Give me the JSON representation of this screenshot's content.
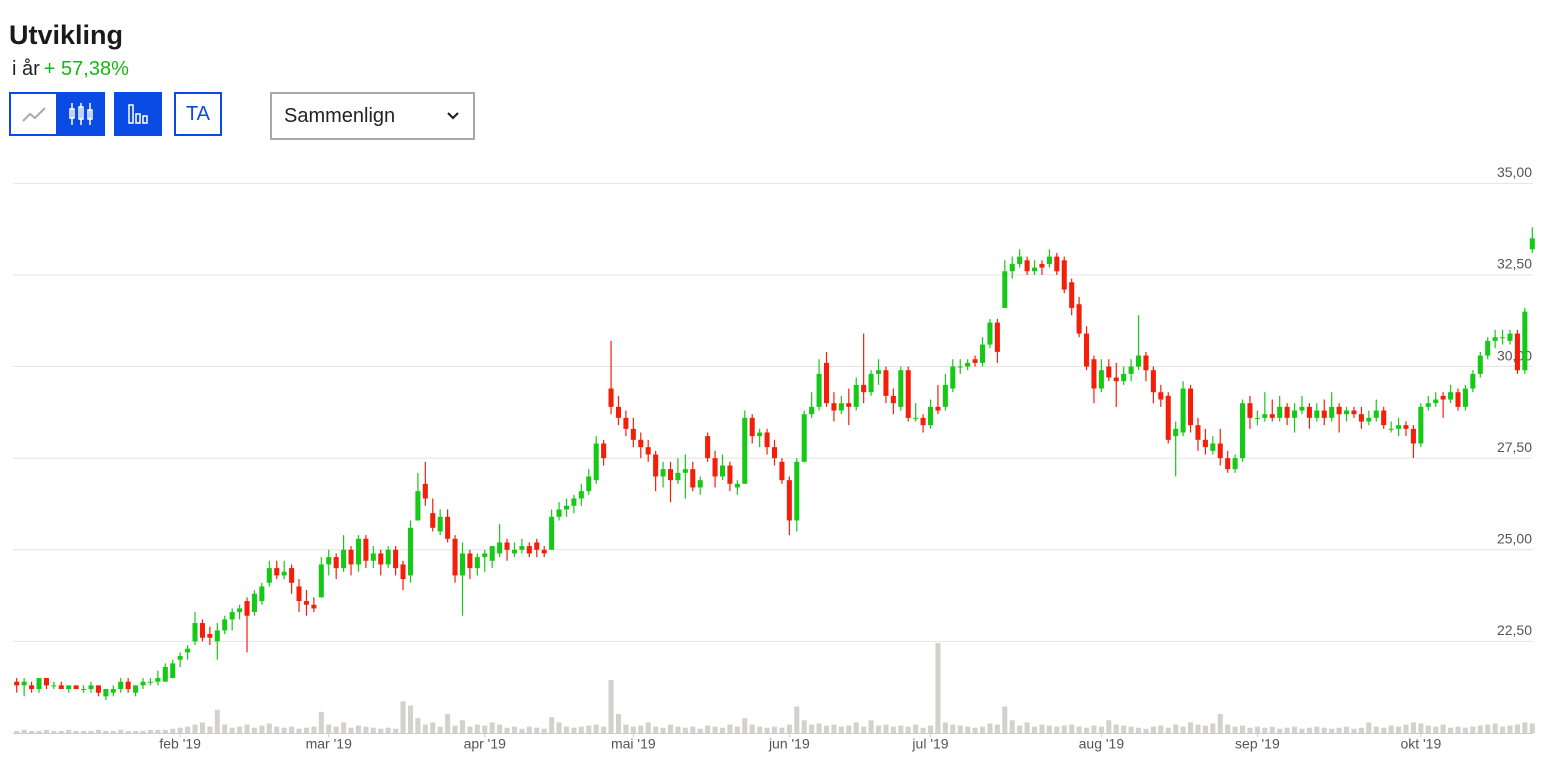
{
  "header": {
    "title": "Utvikling",
    "period": "i år",
    "change": "+ 57,38%"
  },
  "controls": {
    "ta": "TA",
    "compare": "Sammenlign"
  },
  "chart_data": {
    "type": "candlestick",
    "up_color": "#16c916",
    "down_color": "#f51e0a",
    "volume_color": "#d4d1cd",
    "grid": true,
    "ylim": [
      20,
      35.5
    ],
    "yticks": [
      {
        "value": 22.5,
        "label": "22,50"
      },
      {
        "value": 25,
        "label": "25,00"
      },
      {
        "value": 27.5,
        "label": "27,50"
      },
      {
        "value": 30,
        "label": "30,00"
      },
      {
        "value": 32.5,
        "label": "32,50"
      },
      {
        "value": 35,
        "label": "35,00"
      }
    ],
    "xlim": [
      -0.5,
      204.5
    ],
    "xticks": [
      {
        "value": 22,
        "label": "feb '19"
      },
      {
        "value": 42,
        "label": "mar '19"
      },
      {
        "value": 63,
        "label": "apr '19"
      },
      {
        "value": 83,
        "label": "mai '19"
      },
      {
        "value": 104,
        "label": "jun '19"
      },
      {
        "value": 123,
        "label": "jul '19"
      },
      {
        "value": 146,
        "label": "aug '19"
      },
      {
        "value": 167,
        "label": "sep '19"
      },
      {
        "value": 189,
        "label": "okt '19"
      }
    ],
    "candles": [
      [
        21.4,
        21.5,
        21.1,
        21.3
      ],
      [
        21.3,
        21.5,
        21.0,
        21.4
      ],
      [
        21.3,
        21.4,
        21.1,
        21.2
      ],
      [
        21.2,
        21.5,
        21.1,
        21.5
      ],
      [
        21.5,
        21.5,
        21.2,
        21.3
      ],
      [
        21.3,
        21.4,
        21.2,
        21.3
      ],
      [
        21.3,
        21.4,
        21.2,
        21.2
      ],
      [
        21.2,
        21.3,
        21.1,
        21.3
      ],
      [
        21.3,
        21.3,
        21.2,
        21.2
      ],
      [
        21.2,
        21.3,
        21.1,
        21.2
      ],
      [
        21.2,
        21.4,
        21.1,
        21.3
      ],
      [
        21.3,
        21.3,
        21.0,
        21.1
      ],
      [
        21.0,
        21.2,
        20.9,
        21.2
      ],
      [
        21.1,
        21.3,
        21.0,
        21.2
      ],
      [
        21.2,
        21.5,
        21.1,
        21.4
      ],
      [
        21.4,
        21.5,
        21.1,
        21.2
      ],
      [
        21.1,
        21.3,
        21.0,
        21.3
      ],
      [
        21.3,
        21.5,
        21.2,
        21.4
      ],
      [
        21.4,
        21.5,
        21.3,
        21.4
      ],
      [
        21.4,
        21.7,
        21.3,
        21.5
      ],
      [
        21.4,
        21.9,
        21.4,
        21.8
      ],
      [
        21.5,
        22.0,
        21.5,
        21.9
      ],
      [
        22.0,
        22.2,
        21.8,
        22.1
      ],
      [
        22.2,
        22.4,
        22.0,
        22.3
      ],
      [
        22.5,
        23.3,
        22.4,
        23.0
      ],
      [
        23.0,
        23.1,
        22.5,
        22.6
      ],
      [
        22.7,
        22.9,
        22.4,
        22.6
      ],
      [
        22.5,
        23.0,
        22.0,
        22.8
      ],
      [
        22.8,
        23.2,
        22.7,
        23.1
      ],
      [
        23.1,
        23.4,
        22.8,
        23.3
      ],
      [
        23.3,
        23.5,
        23.1,
        23.4
      ],
      [
        23.6,
        23.7,
        22.2,
        23.2
      ],
      [
        23.3,
        23.9,
        23.2,
        23.8
      ],
      [
        23.6,
        24.1,
        23.5,
        24.0
      ],
      [
        24.1,
        24.7,
        24.0,
        24.5
      ],
      [
        24.5,
        24.7,
        24.2,
        24.3
      ],
      [
        24.3,
        24.7,
        24.2,
        24.4
      ],
      [
        24.5,
        24.6,
        23.8,
        24.1
      ],
      [
        24.0,
        24.2,
        23.3,
        23.6
      ],
      [
        23.6,
        23.9,
        23.2,
        23.5
      ],
      [
        23.5,
        23.7,
        23.3,
        23.4
      ],
      [
        23.7,
        24.8,
        23.7,
        24.6
      ],
      [
        24.6,
        25.0,
        24.3,
        24.8
      ],
      [
        24.8,
        24.9,
        24.2,
        24.5
      ],
      [
        24.5,
        25.4,
        24.4,
        25.0
      ],
      [
        25.0,
        25.1,
        24.3,
        24.6
      ],
      [
        24.6,
        25.4,
        24.4,
        25.3
      ],
      [
        25.3,
        25.4,
        24.5,
        24.7
      ],
      [
        24.7,
        25.1,
        24.5,
        24.9
      ],
      [
        24.9,
        25.0,
        24.3,
        24.6
      ],
      [
        24.6,
        25.1,
        24.5,
        25.0
      ],
      [
        25.0,
        25.1,
        24.3,
        24.5
      ],
      [
        24.6,
        24.7,
        23.9,
        24.2
      ],
      [
        24.3,
        25.8,
        24.1,
        25.6
      ],
      [
        25.8,
        27.1,
        25.8,
        26.6
      ],
      [
        26.8,
        27.4,
        26.2,
        26.4
      ],
      [
        26.0,
        26.4,
        25.5,
        25.6
      ],
      [
        25.5,
        26.1,
        25.4,
        25.9
      ],
      [
        25.9,
        26.1,
        25.2,
        25.3
      ],
      [
        25.3,
        25.4,
        24.1,
        24.3
      ],
      [
        24.3,
        25.2,
        23.2,
        24.9
      ],
      [
        24.9,
        25.0,
        24.2,
        24.5
      ],
      [
        24.5,
        24.9,
        24.3,
        24.8
      ],
      [
        24.8,
        25.0,
        24.4,
        24.9
      ],
      [
        24.7,
        25.1,
        24.5,
        25.1
      ],
      [
        24.9,
        25.7,
        24.8,
        25.2
      ],
      [
        25.2,
        25.3,
        24.7,
        25.0
      ],
      [
        24.9,
        25.2,
        24.8,
        25.0
      ],
      [
        25.0,
        25.3,
        24.9,
        25.1
      ],
      [
        25.1,
        25.2,
        24.8,
        24.9
      ],
      [
        25.2,
        25.3,
        24.8,
        25.0
      ],
      [
        25.0,
        25.1,
        24.8,
        24.9
      ],
      [
        25.0,
        26.1,
        25.0,
        25.9
      ],
      [
        25.9,
        26.3,
        25.8,
        26.1
      ],
      [
        26.1,
        26.4,
        25.9,
        26.2
      ],
      [
        26.2,
        26.5,
        26.0,
        26.4
      ],
      [
        26.4,
        26.8,
        26.2,
        26.6
      ],
      [
        26.6,
        27.2,
        26.5,
        27.0
      ],
      [
        26.9,
        28.1,
        26.8,
        27.9
      ],
      [
        27.9,
        28.0,
        27.3,
        27.5
      ],
      [
        29.4,
        30.7,
        28.7,
        28.9
      ],
      [
        28.9,
        29.2,
        28.4,
        28.6
      ],
      [
        28.6,
        28.8,
        28.1,
        28.3
      ],
      [
        28.3,
        28.6,
        27.8,
        28.0
      ],
      [
        28.0,
        28.2,
        27.5,
        27.8
      ],
      [
        27.8,
        28.0,
        27.4,
        27.6
      ],
      [
        27.6,
        27.7,
        26.6,
        27.0
      ],
      [
        27.0,
        27.4,
        26.7,
        27.2
      ],
      [
        27.2,
        27.4,
        26.3,
        26.9
      ],
      [
        26.9,
        27.5,
        26.8,
        27.1
      ],
      [
        27.1,
        27.6,
        26.4,
        27.2
      ],
      [
        27.2,
        27.4,
        26.6,
        26.7
      ],
      [
        26.7,
        27.0,
        26.5,
        26.9
      ],
      [
        28.1,
        28.2,
        27.4,
        27.5
      ],
      [
        27.5,
        27.7,
        26.7,
        27.0
      ],
      [
        27.0,
        27.6,
        26.9,
        27.3
      ],
      [
        27.3,
        27.4,
        26.6,
        26.8
      ],
      [
        26.7,
        26.9,
        26.5,
        26.8
      ],
      [
        26.8,
        28.8,
        26.8,
        28.6
      ],
      [
        28.6,
        28.7,
        27.9,
        28.1
      ],
      [
        28.1,
        28.3,
        27.8,
        28.2
      ],
      [
        28.2,
        28.3,
        27.6,
        27.8
      ],
      [
        27.8,
        28.0,
        27.3,
        27.5
      ],
      [
        27.4,
        27.5,
        26.8,
        26.9
      ],
      [
        26.9,
        27.0,
        25.4,
        25.8
      ],
      [
        25.8,
        27.5,
        25.5,
        27.4
      ],
      [
        27.4,
        28.8,
        27.4,
        28.7
      ],
      [
        28.7,
        29.3,
        28.6,
        28.9
      ],
      [
        28.9,
        30.2,
        28.8,
        29.8
      ],
      [
        30.1,
        30.4,
        28.9,
        29.0
      ],
      [
        29.0,
        29.3,
        28.5,
        28.8
      ],
      [
        28.8,
        29.2,
        28.7,
        29.0
      ],
      [
        29.0,
        29.4,
        28.4,
        28.9
      ],
      [
        28.9,
        29.7,
        28.8,
        29.5
      ],
      [
        29.5,
        30.9,
        29.0,
        29.3
      ],
      [
        29.3,
        29.9,
        29.2,
        29.8
      ],
      [
        29.8,
        30.2,
        29.5,
        29.9
      ],
      [
        29.9,
        30.0,
        29.0,
        29.2
      ],
      [
        29.2,
        29.4,
        28.7,
        29.0
      ],
      [
        28.9,
        30.0,
        28.8,
        29.9
      ],
      [
        29.9,
        30.0,
        28.5,
        28.6
      ],
      [
        28.6,
        29.0,
        28.5,
        28.6
      ],
      [
        28.6,
        28.7,
        28.2,
        28.4
      ],
      [
        28.4,
        29.1,
        28.3,
        28.9
      ],
      [
        28.9,
        29.5,
        28.7,
        28.8
      ],
      [
        28.9,
        29.8,
        28.8,
        29.5
      ],
      [
        29.4,
        30.2,
        29.3,
        30.0
      ],
      [
        30.0,
        30.2,
        29.8,
        30.0
      ],
      [
        30.0,
        30.2,
        29.9,
        30.1
      ],
      [
        30.2,
        30.3,
        30.0,
        30.1
      ],
      [
        30.1,
        30.8,
        30.0,
        30.6
      ],
      [
        30.6,
        31.3,
        30.5,
        31.2
      ],
      [
        31.2,
        31.3,
        30.1,
        30.4
      ],
      [
        31.6,
        32.9,
        31.6,
        32.6
      ],
      [
        32.6,
        33.0,
        32.4,
        32.8
      ],
      [
        32.8,
        33.2,
        32.7,
        33.0
      ],
      [
        32.9,
        33.0,
        32.5,
        32.6
      ],
      [
        32.6,
        32.9,
        32.5,
        32.7
      ],
      [
        32.8,
        32.9,
        32.5,
        32.7
      ],
      [
        32.8,
        33.2,
        32.7,
        33.0
      ],
      [
        33.0,
        33.1,
        32.5,
        32.6
      ],
      [
        32.9,
        33.0,
        32.0,
        32.1
      ],
      [
        32.3,
        32.4,
        31.4,
        31.6
      ],
      [
        31.7,
        31.9,
        30.8,
        30.9
      ],
      [
        30.9,
        31.1,
        29.9,
        30.0
      ],
      [
        30.2,
        30.3,
        29.0,
        29.4
      ],
      [
        29.4,
        30.2,
        29.3,
        29.9
      ],
      [
        30.0,
        30.2,
        29.6,
        29.7
      ],
      [
        29.7,
        30.1,
        28.9,
        29.6
      ],
      [
        29.6,
        30.0,
        29.5,
        29.8
      ],
      [
        29.8,
        30.2,
        29.6,
        30.0
      ],
      [
        30.0,
        31.4,
        29.9,
        30.3
      ],
      [
        30.3,
        30.4,
        29.6,
        29.9
      ],
      [
        29.9,
        30.0,
        29.0,
        29.3
      ],
      [
        29.3,
        29.5,
        28.9,
        29.1
      ],
      [
        29.2,
        29.3,
        27.9,
        28.0
      ],
      [
        28.1,
        28.5,
        27.0,
        28.3
      ],
      [
        28.2,
        29.6,
        28.1,
        29.4
      ],
      [
        29.4,
        29.5,
        28.2,
        28.4
      ],
      [
        28.4,
        28.6,
        27.7,
        28.0
      ],
      [
        28.0,
        28.3,
        27.6,
        27.8
      ],
      [
        27.7,
        28.1,
        27.6,
        27.9
      ],
      [
        27.9,
        28.3,
        27.3,
        27.5
      ],
      [
        27.5,
        27.7,
        27.1,
        27.2
      ],
      [
        27.2,
        27.6,
        27.1,
        27.5
      ],
      [
        27.5,
        29.1,
        27.4,
        29.0
      ],
      [
        29.0,
        29.2,
        28.3,
        28.6
      ],
      [
        28.6,
        28.8,
        28.4,
        28.6
      ],
      [
        28.6,
        29.3,
        28.5,
        28.7
      ],
      [
        28.7,
        29.1,
        28.5,
        28.6
      ],
      [
        28.6,
        29.2,
        28.5,
        28.9
      ],
      [
        28.9,
        29.0,
        28.4,
        28.6
      ],
      [
        28.6,
        29.0,
        28.2,
        28.8
      ],
      [
        28.8,
        29.2,
        28.7,
        28.9
      ],
      [
        28.9,
        29.0,
        28.3,
        28.6
      ],
      [
        28.6,
        29.0,
        28.5,
        28.8
      ],
      [
        28.8,
        29.1,
        28.4,
        28.6
      ],
      [
        28.6,
        29.3,
        28.5,
        28.9
      ],
      [
        28.9,
        29.0,
        28.2,
        28.7
      ],
      [
        28.7,
        28.9,
        28.5,
        28.8
      ],
      [
        28.8,
        28.9,
        28.6,
        28.7
      ],
      [
        28.7,
        28.9,
        28.3,
        28.5
      ],
      [
        28.5,
        28.8,
        28.4,
        28.6
      ],
      [
        28.6,
        29.1,
        28.5,
        28.8
      ],
      [
        28.8,
        28.9,
        28.3,
        28.4
      ],
      [
        28.3,
        28.5,
        28.2,
        28.3
      ],
      [
        28.3,
        28.6,
        28.1,
        28.4
      ],
      [
        28.4,
        28.5,
        28.1,
        28.3
      ],
      [
        28.3,
        28.4,
        27.5,
        27.9
      ],
      [
        27.9,
        29.0,
        27.8,
        28.9
      ],
      [
        28.9,
        29.2,
        28.8,
        29.0
      ],
      [
        29.0,
        29.3,
        28.9,
        29.1
      ],
      [
        29.2,
        29.3,
        28.6,
        29.1
      ],
      [
        29.1,
        29.5,
        29.0,
        29.3
      ],
      [
        29.3,
        29.4,
        28.8,
        28.9
      ],
      [
        28.9,
        29.5,
        28.8,
        29.4
      ],
      [
        29.4,
        29.9,
        29.3,
        29.8
      ],
      [
        29.8,
        30.4,
        29.7,
        30.3
      ],
      [
        30.3,
        30.8,
        30.2,
        30.7
      ],
      [
        30.7,
        31.0,
        30.5,
        30.8
      ],
      [
        30.8,
        31.0,
        30.6,
        30.8
      ],
      [
        30.7,
        31.0,
        30.6,
        30.9
      ],
      [
        30.9,
        31.0,
        29.8,
        29.9
      ],
      [
        29.9,
        31.6,
        29.8,
        31.5
      ],
      [
        33.2,
        33.8,
        33.1,
        33.5
      ]
    ],
    "volumes": [
      2,
      3,
      2,
      2,
      3,
      2,
      2,
      3,
      2,
      2,
      2,
      3,
      2,
      2,
      3,
      2,
      2,
      2,
      3,
      3,
      3,
      4,
      5,
      6,
      8,
      10,
      6,
      22,
      8,
      5,
      6,
      8,
      5,
      7,
      9,
      6,
      5,
      6,
      4,
      5,
      6,
      20,
      8,
      6,
      10,
      5,
      7,
      6,
      5,
      4,
      5,
      4,
      30,
      26,
      14,
      8,
      10,
      6,
      18,
      7,
      12,
      6,
      8,
      7,
      10,
      8,
      5,
      6,
      4,
      6,
      5,
      4,
      15,
      10,
      6,
      5,
      6,
      7,
      8,
      6,
      50,
      18,
      8,
      6,
      7,
      10,
      6,
      5,
      8,
      6,
      5,
      6,
      4,
      7,
      6,
      5,
      8,
      6,
      14,
      8,
      6,
      5,
      6,
      5,
      8,
      25,
      12,
      8,
      9,
      7,
      8,
      6,
      7,
      10,
      6,
      12,
      7,
      8,
      6,
      7,
      6,
      8,
      5,
      7,
      85,
      10,
      8,
      7,
      6,
      5,
      6,
      9,
      8,
      25,
      12,
      7,
      10,
      6,
      8,
      7,
      6,
      7,
      8,
      6,
      5,
      7,
      6,
      12,
      8,
      7,
      6,
      5,
      4,
      6,
      7,
      5,
      8,
      6,
      10,
      8,
      7,
      9,
      18,
      8,
      6,
      7,
      5,
      6,
      5,
      6,
      4,
      5,
      6,
      4,
      5,
      6,
      5,
      4,
      5,
      6,
      4,
      5,
      10,
      6,
      5,
      7,
      6,
      8,
      10,
      9,
      7,
      6,
      8,
      5,
      6,
      5,
      6,
      7,
      8,
      9,
      6,
      7,
      8,
      10,
      9
    ]
  }
}
